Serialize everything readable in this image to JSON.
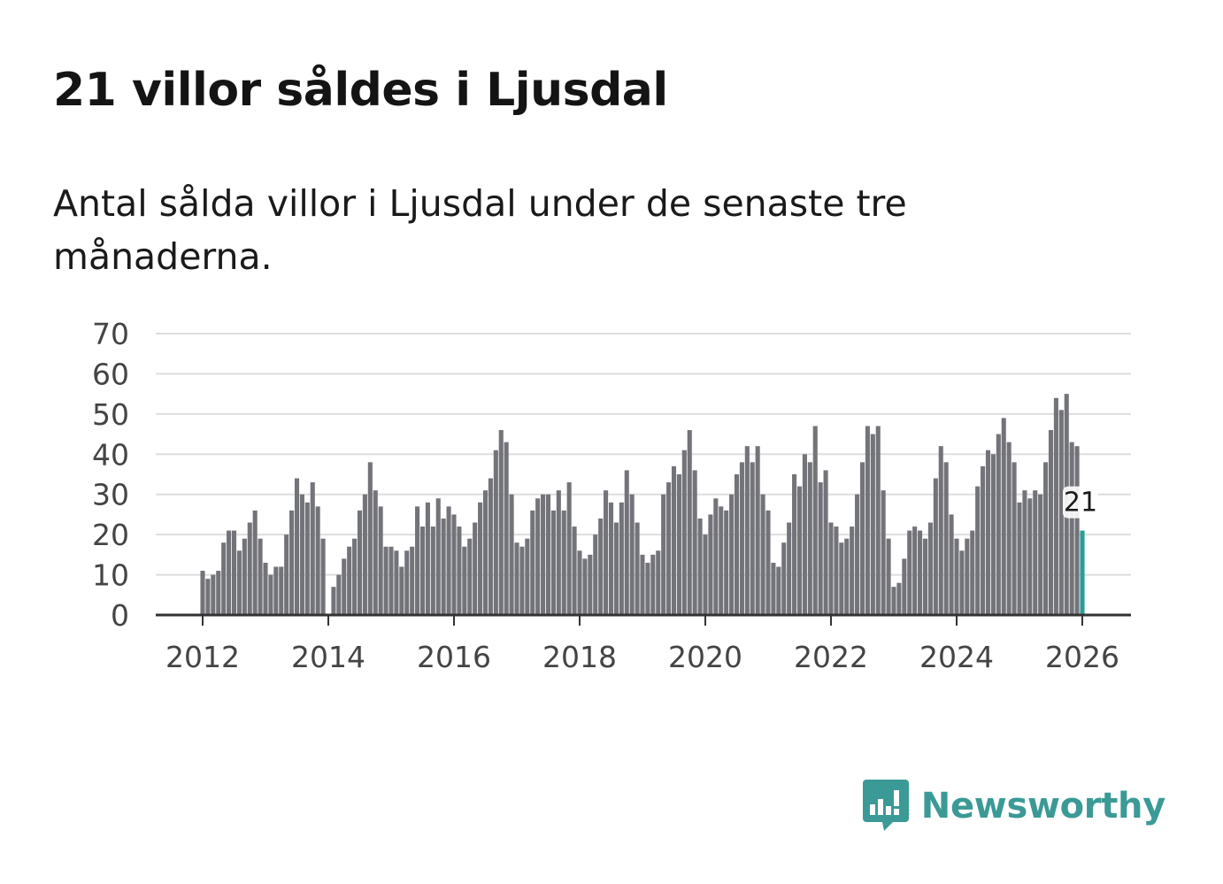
{
  "title": "21 villor såldes i Ljusdal",
  "subtitle": "Antal sålda villor i Ljusdal under de senaste tre månaderna.",
  "brand": {
    "name": "Newsworthy",
    "icon": "newsworthy-logo-icon",
    "color": "#3b9a96"
  },
  "chart_data": {
    "type": "bar",
    "title": "",
    "xlabel": "",
    "ylabel": "",
    "ylim": [
      0,
      70
    ],
    "yticks": [
      0,
      10,
      20,
      30,
      40,
      50,
      60,
      70
    ],
    "xticks": [
      "2012",
      "2014",
      "2016",
      "2018",
      "2020",
      "2022",
      "2024",
      "2026"
    ],
    "grid": true,
    "start": "2012-01",
    "frequency": "monthly",
    "bar_color": "#73737a",
    "highlight_color": "#2a9d95",
    "highlight_label": "21",
    "values": [
      11,
      9,
      10,
      11,
      18,
      21,
      21,
      16,
      19,
      23,
      26,
      19,
      13,
      10,
      12,
      12,
      20,
      26,
      34,
      30,
      28,
      33,
      27,
      19,
      0,
      7,
      10,
      14,
      17,
      19,
      26,
      30,
      38,
      31,
      27,
      17,
      17,
      16,
      12,
      16,
      17,
      27,
      22,
      28,
      22,
      29,
      24,
      27,
      25,
      22,
      17,
      19,
      23,
      28,
      31,
      34,
      41,
      46,
      43,
      30,
      18,
      17,
      19,
      26,
      29,
      30,
      30,
      26,
      31,
      26,
      33,
      22,
      16,
      14,
      15,
      20,
      24,
      31,
      28,
      23,
      28,
      36,
      30,
      23,
      15,
      13,
      15,
      16,
      30,
      33,
      37,
      35,
      41,
      46,
      36,
      24,
      20,
      25,
      29,
      27,
      26,
      30,
      35,
      38,
      42,
      38,
      42,
      30,
      26,
      13,
      12,
      18,
      23,
      35,
      32,
      40,
      38,
      47,
      33,
      36,
      23,
      22,
      18,
      19,
      22,
      30,
      38,
      47,
      45,
      47,
      31,
      19,
      7,
      8,
      14,
      21,
      22,
      21,
      19,
      23,
      34,
      42,
      38,
      25,
      19,
      16,
      19,
      21,
      32,
      37,
      41,
      40,
      45,
      49,
      43,
      38,
      28,
      31,
      29,
      31,
      30,
      38,
      46,
      54,
      51,
      55,
      43,
      42,
      21
    ]
  }
}
